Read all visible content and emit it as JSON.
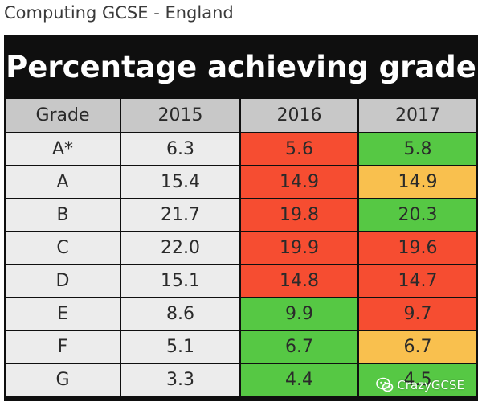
{
  "subtitle": "Computing GCSE - England",
  "chart_data": {
    "type": "table",
    "title": "Percentage achieving grade",
    "columns": [
      "Grade",
      "2015",
      "2016",
      "2017"
    ],
    "rows": [
      {
        "grade": "A*",
        "values": [
          "6.3",
          "5.6",
          "5.8"
        ],
        "colors": [
          "#ececec",
          "#f64d31",
          "#56c844"
        ]
      },
      {
        "grade": "A",
        "values": [
          "15.4",
          "14.9",
          "14.9"
        ],
        "colors": [
          "#ececec",
          "#f64d31",
          "#f9c04e"
        ]
      },
      {
        "grade": "B",
        "values": [
          "21.7",
          "19.8",
          "20.3"
        ],
        "colors": [
          "#ececec",
          "#f64d31",
          "#56c844"
        ]
      },
      {
        "grade": "C",
        "values": [
          "22.0",
          "19.9",
          "19.6"
        ],
        "colors": [
          "#ececec",
          "#f64d31",
          "#f64d31"
        ]
      },
      {
        "grade": "D",
        "values": [
          "15.1",
          "14.8",
          "14.7"
        ],
        "colors": [
          "#ececec",
          "#f64d31",
          "#f64d31"
        ]
      },
      {
        "grade": "E",
        "values": [
          "8.6",
          "9.9",
          "9.7"
        ],
        "colors": [
          "#ececec",
          "#56c844",
          "#f64d31"
        ]
      },
      {
        "grade": "F",
        "values": [
          "5.1",
          "6.7",
          "6.7"
        ],
        "colors": [
          "#ececec",
          "#56c844",
          "#f9c04e"
        ]
      },
      {
        "grade": "G",
        "values": [
          "3.3",
          "4.4",
          "4.5"
        ],
        "colors": [
          "#ececec",
          "#56c844",
          "#56c844"
        ]
      }
    ]
  },
  "colors": {
    "header_bg": "#c8c8c8",
    "grade_col_bg": "#ececec",
    "frame": "#0f0f0f",
    "red": "#f64d31",
    "green": "#56c844",
    "amber": "#f9c04e"
  },
  "watermark": {
    "text": "CrazyGCSE",
    "icon": "wechat-icon"
  }
}
